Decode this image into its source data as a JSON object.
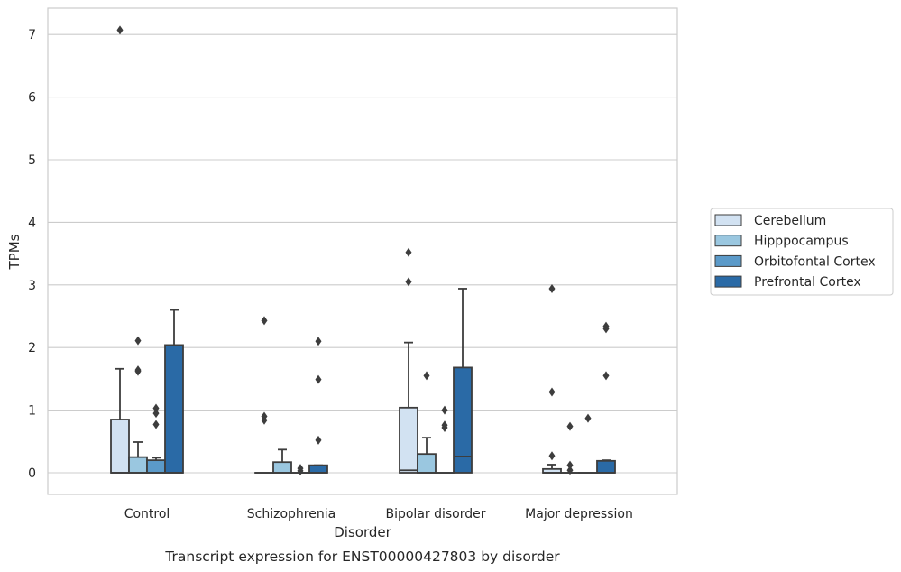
{
  "chart_data": {
    "type": "box",
    "xlabel": "Disorder",
    "ylabel": "TPMs",
    "caption": "Transcript expression for ENST00000427803 by disorder",
    "ylim": [
      -0.35,
      7.45
    ],
    "yticks": [
      0,
      1,
      2,
      3,
      4,
      5,
      6,
      7
    ],
    "grid": true,
    "legend_position": "right",
    "categories": [
      "Control",
      "Schizophrenia",
      "Bipolar disorder",
      "Major depression"
    ],
    "series": [
      {
        "name": "Cerebellum",
        "color": "#d2e2f2",
        "boxes": [
          {
            "q1": 0,
            "median": 0,
            "q3": 0.85,
            "whislo": 0,
            "whishi": 1.66,
            "fliers": [
              7.07
            ]
          },
          {
            "q1": 0,
            "median": 0,
            "q3": 0,
            "whislo": 0,
            "whishi": 0,
            "fliers": [
              2.43,
              0.9,
              0.84
            ]
          },
          {
            "q1": 0,
            "median": 0.04,
            "q3": 1.04,
            "whislo": 0,
            "whishi": 2.08,
            "fliers": [
              3.52,
              3.05
            ]
          },
          {
            "q1": 0,
            "median": 0,
            "q3": 0.06,
            "whislo": 0,
            "whishi": 0.13,
            "fliers": [
              2.94,
              1.29,
              0.27
            ]
          }
        ]
      },
      {
        "name": "Hipppocampus",
        "color": "#9ac7e0",
        "boxes": [
          {
            "q1": 0,
            "median": 0,
            "q3": 0.25,
            "whislo": 0,
            "whishi": 0.49,
            "fliers": [
              2.11,
              1.64,
              1.62
            ]
          },
          {
            "q1": 0,
            "median": 0,
            "q3": 0.17,
            "whislo": 0,
            "whishi": 0.37,
            "fliers": []
          },
          {
            "q1": 0,
            "median": 0,
            "q3": 0.3,
            "whislo": 0,
            "whishi": 0.56,
            "fliers": [
              1.55
            ]
          },
          {
            "q1": 0,
            "median": 0,
            "q3": 0,
            "whislo": 0,
            "whishi": 0,
            "fliers": [
              0.74,
              0.12,
              0.04
            ]
          }
        ]
      },
      {
        "name": "Orbitofontal Cortex",
        "color": "#5b9ac9",
        "boxes": [
          {
            "q1": 0,
            "median": 0,
            "q3": 0.2,
            "whislo": 0,
            "whishi": 0.24,
            "fliers": [
              1.03,
              0.95,
              0.77
            ]
          },
          {
            "q1": 0,
            "median": 0,
            "q3": 0,
            "whislo": 0,
            "whishi": 0,
            "fliers": [
              0.07,
              0.03
            ]
          },
          {
            "q1": 0,
            "median": 0,
            "q3": 0,
            "whislo": 0,
            "whishi": 0,
            "fliers": [
              1.0,
              0.76,
              0.72
            ]
          },
          {
            "q1": 0,
            "median": 0,
            "q3": 0,
            "whislo": 0,
            "whishi": 0,
            "fliers": [
              0.87
            ]
          }
        ]
      },
      {
        "name": "Prefrontal Cortex",
        "color": "#2a6aa6",
        "boxes": [
          {
            "q1": 0,
            "median": 0,
            "q3": 2.04,
            "whislo": 0,
            "whishi": 2.6,
            "fliers": []
          },
          {
            "q1": 0,
            "median": 0,
            "q3": 0.12,
            "whislo": 0,
            "whishi": 0.12,
            "fliers": [
              2.1,
              1.49,
              0.52
            ]
          },
          {
            "q1": 0,
            "median": 0.26,
            "q3": 1.68,
            "whislo": 0,
            "whishi": 2.94,
            "fliers": []
          },
          {
            "q1": 0,
            "median": 0,
            "q3": 0.19,
            "whislo": 0,
            "whishi": 0.2,
            "fliers": [
              2.34,
              2.3,
              1.55
            ]
          }
        ]
      }
    ]
  }
}
